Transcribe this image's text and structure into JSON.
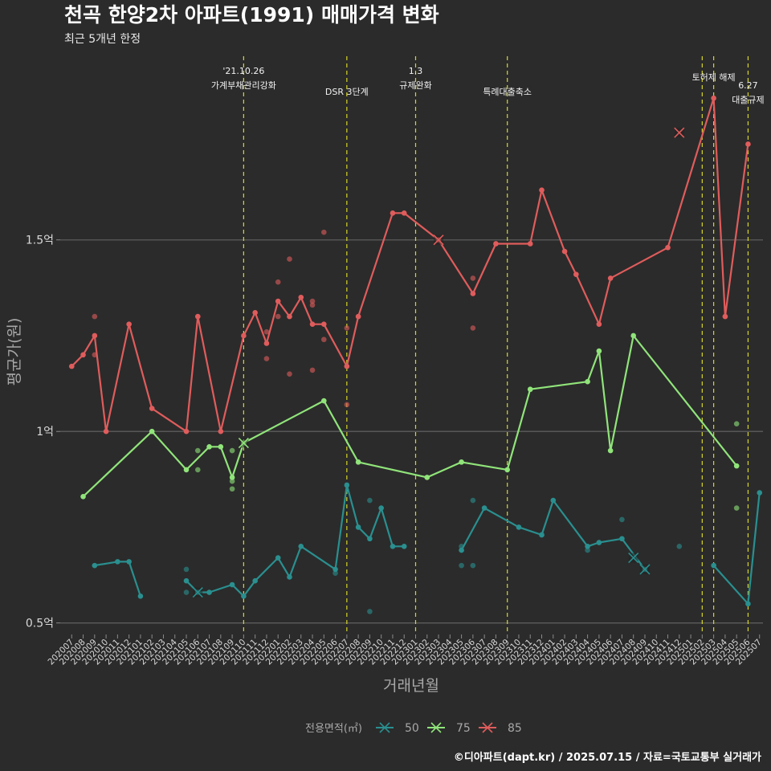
{
  "chart_data": {
    "type": "line",
    "title": "천곡 한양2차 아파트(1991) 매매가격 변화",
    "subtitle": "최근 5개년 한정",
    "xlabel": "거래년월",
    "ylabel": "평균가(원)",
    "caption": "©디아파트(dapt.kr) / 2025.07.15 / 자료=국토교통부 실거래가",
    "legend_title": "전용면적(㎡)",
    "legend_position": "bottom",
    "grid": true,
    "ylim": [
      0.47,
      1.99
    ],
    "y_ticks": [
      {
        "value": 0.5,
        "label": "0.5억"
      },
      {
        "value": 1.0,
        "label": "1억"
      },
      {
        "value": 1.5,
        "label": "1.5억"
      }
    ],
    "categories": [
      "202007",
      "202008",
      "202009",
      "202010",
      "202011",
      "202012",
      "202101",
      "202102",
      "202103",
      "202104",
      "202105",
      "202106",
      "202107",
      "202108",
      "202109",
      "202110",
      "202111",
      "202112",
      "202201",
      "202202",
      "202203",
      "202204",
      "202205",
      "202206",
      "202207",
      "202208",
      "202209",
      "202210",
      "202211",
      "202212",
      "202301",
      "202302",
      "202303",
      "202304",
      "202305",
      "202306",
      "202307",
      "202308",
      "202309",
      "202310",
      "202311",
      "202312",
      "202401",
      "202402",
      "202403",
      "202404",
      "202405",
      "202406",
      "202407",
      "202408",
      "202409",
      "202410",
      "202411",
      "202412",
      "202501",
      "202502",
      "202503",
      "202504",
      "202505",
      "202506",
      "202507"
    ],
    "events": [
      {
        "month": "202110",
        "label": "'21.10.26\n가계부채관리강화"
      },
      {
        "month": "202207",
        "label": "DSR 3단계"
      },
      {
        "month": "202301",
        "label": "1.3\n규제완화"
      },
      {
        "month": "202309",
        "label": "특례대출축소"
      },
      {
        "month": "202502",
        "label": ""
      },
      {
        "month": "202503",
        "label": "토허제 해제"
      },
      {
        "month": "202506",
        "label": "6.27\n대출규제"
      }
    ],
    "series": [
      {
        "name": "50",
        "color": "#2a8f8f",
        "line": [
          [
            "202009",
            0.65
          ],
          [
            "202011",
            0.66
          ],
          [
            "202012",
            0.66
          ],
          [
            "202101",
            0.57
          ],
          null,
          [
            "202105",
            0.61
          ],
          [
            "202106",
            0.58
          ],
          [
            "202107",
            0.58
          ],
          [
            "202109",
            0.6
          ],
          [
            "202110",
            0.57
          ],
          [
            "202111",
            0.61
          ],
          [
            "202201",
            0.67
          ],
          [
            "202202",
            0.62
          ],
          [
            "202203",
            0.7
          ],
          [
            "202206",
            0.64
          ],
          [
            "202207",
            0.86
          ],
          [
            "202208",
            0.75
          ],
          [
            "202209",
            0.72
          ],
          [
            "202210",
            0.8
          ],
          [
            "202211",
            0.7
          ],
          [
            "202212",
            0.7
          ],
          null,
          [
            "202305",
            0.69
          ],
          [
            "202307",
            0.8
          ],
          [
            "202310",
            0.75
          ],
          [
            "202312",
            0.73
          ],
          [
            "202401",
            0.82
          ],
          [
            "202404",
            0.7
          ],
          [
            "202405",
            0.71
          ],
          [
            "202407",
            0.72
          ],
          [
            "202409",
            0.64
          ],
          null,
          [
            "202503",
            0.65
          ],
          [
            "202506",
            0.55
          ],
          [
            "202507",
            0.84
          ]
        ],
        "points": [
          [
            "202105",
            0.64
          ],
          [
            "202105",
            0.58
          ],
          [
            "202206",
            0.63
          ],
          [
            "202209",
            0.82
          ],
          [
            "202209",
            0.53
          ],
          [
            "202305",
            0.65
          ],
          [
            "202305",
            0.7
          ],
          [
            "202306",
            0.65
          ],
          [
            "202306",
            0.82
          ],
          [
            "202312",
            0.73
          ],
          [
            "202404",
            0.69
          ],
          [
            "202407",
            0.77
          ],
          [
            "202412",
            0.7
          ]
        ],
        "cancelled": [
          [
            "202106",
            0.58
          ],
          [
            "202408",
            0.67
          ],
          [
            "202409",
            0.64
          ]
        ]
      },
      {
        "name": "75",
        "color": "#90e47a",
        "line": [
          [
            "202008",
            0.83
          ],
          [
            "202102",
            1.0
          ],
          [
            "202105",
            0.9
          ],
          [
            "202107",
            0.96
          ],
          [
            "202108",
            0.96
          ],
          [
            "202109",
            0.88
          ],
          [
            "202110",
            0.97
          ],
          [
            "202205",
            1.08
          ],
          [
            "202208",
            0.92
          ],
          [
            "202302",
            0.88
          ],
          [
            "202305",
            0.92
          ],
          [
            "202309",
            0.9
          ],
          [
            "202311",
            1.11
          ],
          [
            "202404",
            1.13
          ],
          [
            "202405",
            1.21
          ],
          [
            "202406",
            0.95
          ],
          [
            "202408",
            1.25
          ],
          [
            "202505",
            0.91
          ]
        ],
        "points": [
          [
            "202106",
            0.95
          ],
          [
            "202106",
            0.9
          ],
          [
            "202109",
            0.95
          ],
          [
            "202109",
            0.87
          ],
          [
            "202109",
            0.85
          ],
          [
            "202505",
            1.02
          ],
          [
            "202505",
            0.8
          ]
        ],
        "cancelled": [
          [
            "202110",
            0.97
          ]
        ]
      },
      {
        "name": "85",
        "color": "#e05c5c",
        "line": [
          [
            "202007",
            1.17
          ],
          [
            "202008",
            1.2
          ],
          [
            "202009",
            1.25
          ],
          [
            "202010",
            1.0
          ],
          [
            "202012",
            1.28
          ],
          [
            "202102",
            1.06
          ],
          [
            "202105",
            1.0
          ],
          [
            "202106",
            1.3
          ],
          [
            "202108",
            1.0
          ],
          [
            "202110",
            1.25
          ],
          [
            "202111",
            1.31
          ],
          [
            "202112",
            1.23
          ],
          [
            "202201",
            1.34
          ],
          [
            "202202",
            1.3
          ],
          [
            "202203",
            1.35
          ],
          [
            "202204",
            1.28
          ],
          [
            "202205",
            1.28
          ],
          [
            "202207",
            1.17
          ],
          [
            "202208",
            1.3
          ],
          [
            "202211",
            1.57
          ],
          [
            "202212",
            1.57
          ],
          [
            "202303",
            1.5
          ],
          [
            "202306",
            1.36
          ],
          [
            "202308",
            1.49
          ],
          [
            "202311",
            1.49
          ],
          [
            "202312",
            1.63
          ],
          [
            "202402",
            1.47
          ],
          [
            "202403",
            1.41
          ],
          [
            "202405",
            1.28
          ],
          [
            "202406",
            1.4
          ],
          [
            "202411",
            1.48
          ],
          [
            "202503",
            1.87
          ],
          [
            "202504",
            1.3
          ],
          [
            "202506",
            1.75
          ]
        ],
        "points": [
          [
            "202009",
            1.3
          ],
          [
            "202009",
            1.2
          ],
          [
            "202112",
            1.26
          ],
          [
            "202112",
            1.19
          ],
          [
            "202201",
            1.39
          ],
          [
            "202201",
            1.3
          ],
          [
            "202202",
            1.45
          ],
          [
            "202202",
            1.15
          ],
          [
            "202204",
            1.34
          ],
          [
            "202204",
            1.33
          ],
          [
            "202204",
            1.16
          ],
          [
            "202205",
            1.52
          ],
          [
            "202205",
            1.24
          ],
          [
            "202207",
            1.27
          ],
          [
            "202207",
            1.07
          ],
          [
            "202306",
            1.4
          ],
          [
            "202306",
            1.27
          ]
        ],
        "cancelled": [
          [
            "202303",
            1.5
          ],
          [
            "202412",
            1.78
          ]
        ]
      }
    ]
  }
}
